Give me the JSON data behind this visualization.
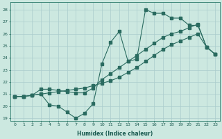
{
  "xlabel": "Humidex (Indice chaleur)",
  "bg_color": "#cce8e0",
  "grid_color": "#aacccc",
  "line_color": "#2a6b60",
  "xlim": [
    -0.5,
    23.5
  ],
  "ylim": [
    18.8,
    28.6
  ],
  "xticks": [
    0,
    1,
    2,
    3,
    4,
    5,
    6,
    7,
    8,
    9,
    10,
    11,
    12,
    13,
    14,
    15,
    16,
    17,
    18,
    19,
    20,
    21,
    22,
    23
  ],
  "yticks": [
    19,
    20,
    21,
    22,
    23,
    24,
    25,
    26,
    27,
    28
  ],
  "line1_x": [
    0,
    1,
    2,
    3,
    4,
    5,
    6,
    7,
    8,
    9,
    10,
    11,
    12,
    13,
    14,
    15,
    16,
    17,
    18,
    19,
    20,
    21,
    22,
    23
  ],
  "line1_y": [
    20.8,
    20.8,
    20.9,
    21.0,
    20.1,
    20.0,
    19.5,
    19.0,
    19.4,
    20.2,
    23.5,
    25.3,
    26.2,
    23.7,
    23.9,
    28.0,
    27.7,
    27.7,
    27.3,
    27.3,
    26.7,
    26.7,
    24.9,
    24.3
  ],
  "line2_x": [
    0,
    1,
    2,
    3,
    4,
    5,
    6,
    7,
    8,
    9,
    10,
    11,
    12,
    13,
    14,
    15,
    16,
    17,
    18,
    19,
    20,
    21,
    22,
    23
  ],
  "line2_y": [
    20.8,
    20.8,
    20.9,
    21.4,
    21.4,
    21.3,
    21.2,
    21.1,
    21.1,
    21.5,
    22.2,
    22.7,
    23.2,
    23.7,
    24.2,
    24.7,
    25.2,
    25.7,
    26.0,
    26.2,
    26.5,
    26.8,
    24.9,
    24.3
  ],
  "line3_x": [
    0,
    1,
    2,
    3,
    4,
    5,
    6,
    7,
    8,
    9,
    10,
    11,
    12,
    13,
    14,
    15,
    16,
    17,
    18,
    19,
    20,
    21,
    22,
    23
  ],
  "line3_y": [
    20.8,
    20.8,
    20.9,
    21.0,
    21.1,
    21.2,
    21.3,
    21.4,
    21.5,
    21.7,
    21.9,
    22.1,
    22.4,
    22.8,
    23.2,
    23.7,
    24.2,
    24.7,
    25.1,
    25.4,
    25.7,
    26.0,
    24.9,
    24.3
  ]
}
